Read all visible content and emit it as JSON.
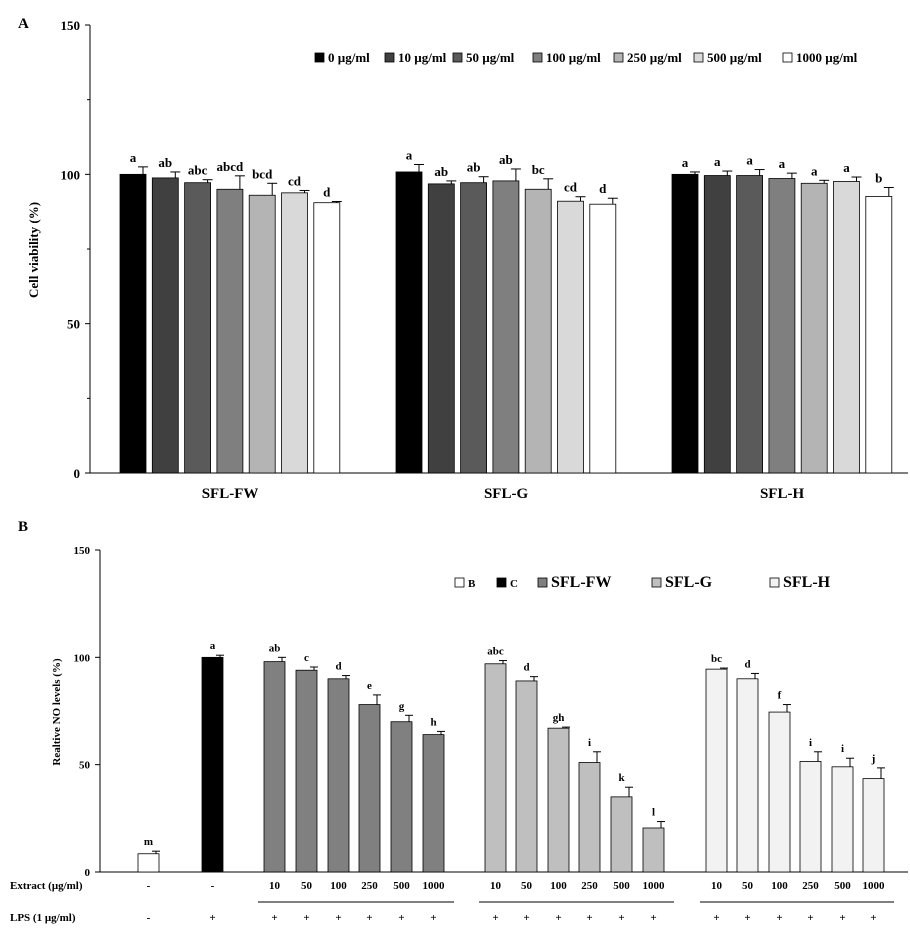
{
  "chart_data": [
    {
      "panel": "A",
      "type": "bar",
      "title": "",
      "xlabel": "",
      "ylabel": "Cell viability (%)",
      "ylim": [
        0,
        150
      ],
      "yticks": [
        "0",
        "50",
        "100",
        "150"
      ],
      "grid": false,
      "legend_position": "top-right",
      "categories": [
        "SFL-FW",
        "SFL-G",
        "SFL-H"
      ],
      "series": [
        {
          "name": "0 µg/ml",
          "color": "#000000",
          "values": [
            100.0,
            100.8,
            100.0
          ],
          "errors": [
            2.5,
            2.5,
            0.8
          ],
          "letters": [
            "a",
            "a",
            "a"
          ]
        },
        {
          "name": "10 µg/ml",
          "color": "#404040",
          "values": [
            98.8,
            96.8,
            99.6
          ],
          "errors": [
            2.0,
            1.0,
            1.5
          ],
          "letters": [
            "ab",
            "ab",
            "a"
          ]
        },
        {
          "name": "50 µg/ml",
          "color": "#5a5a5a",
          "values": [
            97.2,
            97.2,
            99.6
          ],
          "errors": [
            1.0,
            2.0,
            2.0
          ],
          "letters": [
            "abc",
            "ab",
            "a"
          ]
        },
        {
          "name": "100 µg/ml",
          "color": "#7f7f7f",
          "values": [
            95.0,
            97.8,
            98.6
          ],
          "errors": [
            4.5,
            4.0,
            1.8
          ],
          "letters": [
            "abcd",
            "ab",
            "a"
          ]
        },
        {
          "name": "250 µg/ml",
          "color": "#b4b4b4",
          "values": [
            93.0,
            95.0,
            97.0
          ],
          "errors": [
            4.0,
            3.5,
            1.0
          ],
          "letters": [
            "bcd",
            "bc",
            "a"
          ]
        },
        {
          "name": "500 µg/ml",
          "color": "#d9d9d9",
          "values": [
            93.8,
            91.0,
            97.6
          ],
          "errors": [
            0.8,
            1.5,
            1.5
          ],
          "letters": [
            "cd",
            "cd",
            "a"
          ]
        },
        {
          "name": "1000 µg/ml",
          "color": "#ffffff",
          "values": [
            90.5,
            90.0,
            92.6
          ],
          "errors": [
            0.4,
            2.0,
            3.0
          ],
          "letters": [
            "d",
            "d",
            "b"
          ]
        }
      ]
    },
    {
      "panel": "B",
      "type": "bar",
      "title": "",
      "xlabel": "",
      "ylabel": "Realtive NO levels (%)",
      "ylim": [
        0,
        150
      ],
      "yticks": [
        "0",
        "50",
        "100",
        "150"
      ],
      "grid": false,
      "legend_position": "top-right",
      "legend": [
        {
          "name": "B",
          "color": "#ffffff"
        },
        {
          "name": "C",
          "color": "#000000"
        },
        {
          "name": "SFL-FW",
          "color": "#808080"
        },
        {
          "name": "SFL-G",
          "color": "#bfbfbf"
        },
        {
          "name": "SFL-H",
          "color": "#f2f2f2"
        }
      ],
      "row_labels": {
        "extract": "Extract (μg/ml)",
        "lps": "LPS (1 μg/ml)"
      },
      "groups": [
        {
          "name": "B",
          "color": "#ffffff",
          "bars": [
            {
              "extract": "-",
              "lps": "-",
              "value": 8.5,
              "error": 1.2,
              "letter": "m"
            }
          ]
        },
        {
          "name": "C",
          "color": "#000000",
          "bars": [
            {
              "extract": "-",
              "lps": "+",
              "value": 100.0,
              "error": 1.0,
              "letter": "a"
            }
          ]
        },
        {
          "name": "SFL-FW",
          "color": "#808080",
          "bars": [
            {
              "extract": "10",
              "lps": "+",
              "value": 98.0,
              "error": 2.0,
              "letter": "ab"
            },
            {
              "extract": "50",
              "lps": "+",
              "value": 94.0,
              "error": 1.5,
              "letter": "c"
            },
            {
              "extract": "100",
              "lps": "+",
              "value": 90.0,
              "error": 1.5,
              "letter": "d"
            },
            {
              "extract": "250",
              "lps": "+",
              "value": 78.0,
              "error": 4.5,
              "letter": "e"
            },
            {
              "extract": "500",
              "lps": "+",
              "value": 70.0,
              "error": 3.0,
              "letter": "g"
            },
            {
              "extract": "1000",
              "lps": "+",
              "value": 64.0,
              "error": 1.5,
              "letter": "h"
            }
          ]
        },
        {
          "name": "SFL-G",
          "color": "#bfbfbf",
          "bars": [
            {
              "extract": "10",
              "lps": "+",
              "value": 97.0,
              "error": 1.5,
              "letter": "abc"
            },
            {
              "extract": "50",
              "lps": "+",
              "value": 89.0,
              "error": 2.0,
              "letter": "d"
            },
            {
              "extract": "100",
              "lps": "+",
              "value": 67.0,
              "error": 0.5,
              "letter": "gh"
            },
            {
              "extract": "250",
              "lps": "+",
              "value": 51.0,
              "error": 5.0,
              "letter": "i"
            },
            {
              "extract": "500",
              "lps": "+",
              "value": 35.0,
              "error": 4.5,
              "letter": "k"
            },
            {
              "extract": "1000",
              "lps": "+",
              "value": 20.5,
              "error": 3.0,
              "letter": "l"
            }
          ]
        },
        {
          "name": "SFL-H",
          "color": "#f2f2f2",
          "bars": [
            {
              "extract": "10",
              "lps": "+",
              "value": 94.5,
              "error": 0.5,
              "letter": "bc"
            },
            {
              "extract": "50",
              "lps": "+",
              "value": 90.0,
              "error": 2.5,
              "letter": "d"
            },
            {
              "extract": "100",
              "lps": "+",
              "value": 74.5,
              "error": 3.5,
              "letter": "f"
            },
            {
              "extract": "250",
              "lps": "+",
              "value": 51.5,
              "error": 4.5,
              "letter": "i"
            },
            {
              "extract": "500",
              "lps": "+",
              "value": 49.0,
              "error": 4.0,
              "letter": "i"
            },
            {
              "extract": "1000",
              "lps": "+",
              "value": 43.5,
              "error": 5.0,
              "letter": "j"
            }
          ]
        }
      ]
    }
  ]
}
